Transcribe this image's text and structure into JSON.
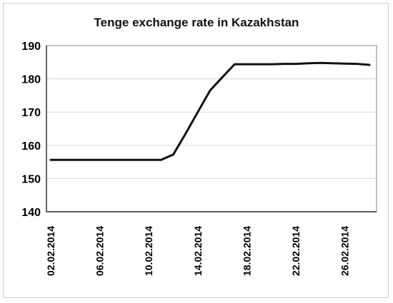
{
  "chart_data": {
    "type": "line",
    "title": "Tenge exchange rate in Kazakhstan",
    "xlabel": "",
    "ylabel": "",
    "ylim": [
      140,
      190
    ],
    "yticks": [
      "140",
      "150",
      "160",
      "170",
      "180",
      "190"
    ],
    "x_tick_labels": [
      "02.02.2014",
      "06.02.2014",
      "10.02.2014",
      "14.02.2014",
      "18.02.2014",
      "22.02.2014",
      "26.02.2014"
    ],
    "x": [
      "02.02.2014",
      "03.02.2014",
      "04.02.2014",
      "05.02.2014",
      "06.02.2014",
      "07.02.2014",
      "08.02.2014",
      "09.02.2014",
      "10.02.2014",
      "11.02.2014",
      "12.02.2014",
      "13.02.2014",
      "14.02.2014",
      "15.02.2014",
      "16.02.2014",
      "17.02.2014",
      "18.02.2014",
      "19.02.2014",
      "20.02.2014",
      "21.02.2014",
      "22.02.2014",
      "23.02.2014",
      "24.02.2014",
      "25.02.2014",
      "26.02.2014",
      "27.02.2014",
      "28.02.2014"
    ],
    "series": [
      {
        "values": [
          155.6,
          155.6,
          155.6,
          155.6,
          155.6,
          155.6,
          155.6,
          155.6,
          155.6,
          155.6,
          157.2,
          163.5,
          170.0,
          176.5,
          180.5,
          184.4,
          184.4,
          184.4,
          184.4,
          184.5,
          184.5,
          184.7,
          184.8,
          184.7,
          184.6,
          184.5,
          184.2
        ],
        "color": "#111111"
      }
    ],
    "grid": true,
    "legend": "none"
  }
}
